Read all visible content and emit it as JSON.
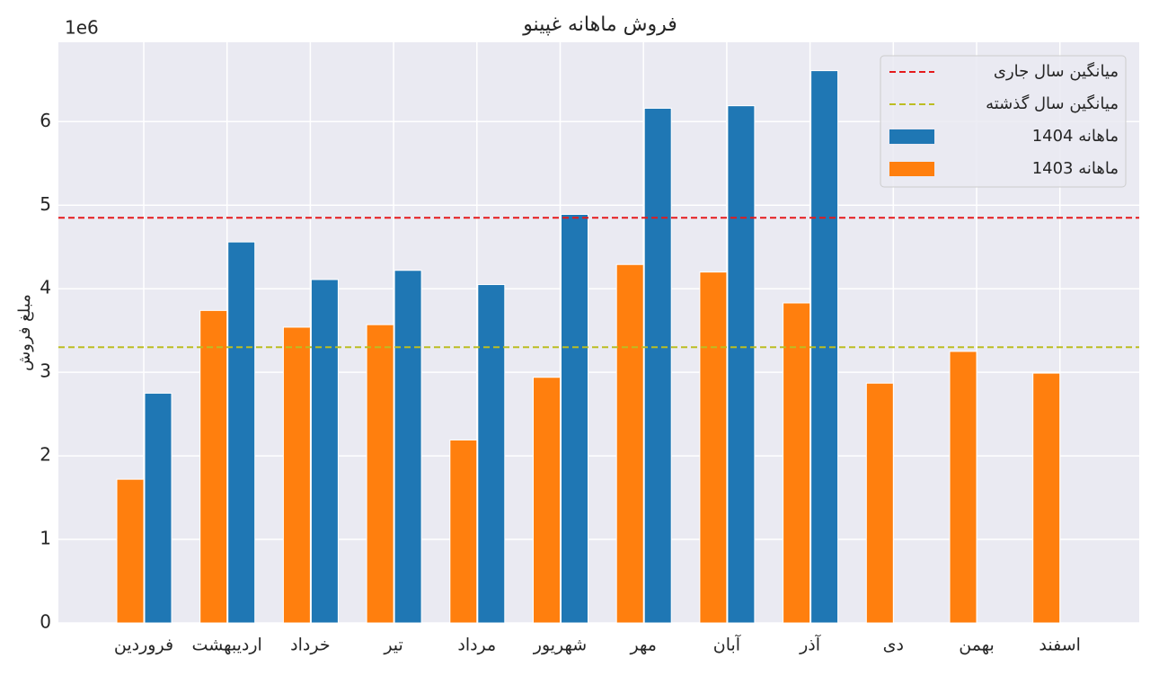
{
  "chart_data": {
    "type": "bar",
    "title": "فروش ماهانه غپینو",
    "y_label": "مبلغ فروش",
    "y_offset_label": "1e6",
    "categories": [
      "فروردین",
      "اردیبهشت",
      "خرداد",
      "تیر",
      "مرداد",
      "شهریور",
      "مهر",
      "آبان",
      "آذر",
      "دی",
      "بهمن",
      "اسفند"
    ],
    "series": [
      {
        "name": "ماهانه 1403",
        "color": "#ff7f0e",
        "values": [
          1.72,
          3.74,
          3.54,
          3.57,
          2.19,
          2.94,
          4.29,
          4.2,
          3.83,
          2.87,
          3.25,
          2.99
        ]
      },
      {
        "name": "ماهانه 1404",
        "color": "#1f77b4",
        "values": [
          2.75,
          4.56,
          4.11,
          4.22,
          4.05,
          4.89,
          6.16,
          6.19,
          6.61,
          null,
          null,
          null
        ]
      }
    ],
    "reference_lines": [
      {
        "name": "میانگین سال جاری",
        "color": "#e41a1c",
        "value": 4.85
      },
      {
        "name": "میانگین سال گذشته",
        "color": "#bcbd22",
        "value": 3.3
      }
    ],
    "ylim": [
      0,
      6.95
    ],
    "yticks": [
      0,
      1,
      2,
      3,
      4,
      5,
      6
    ],
    "grid": true,
    "legend": "upper right"
  }
}
